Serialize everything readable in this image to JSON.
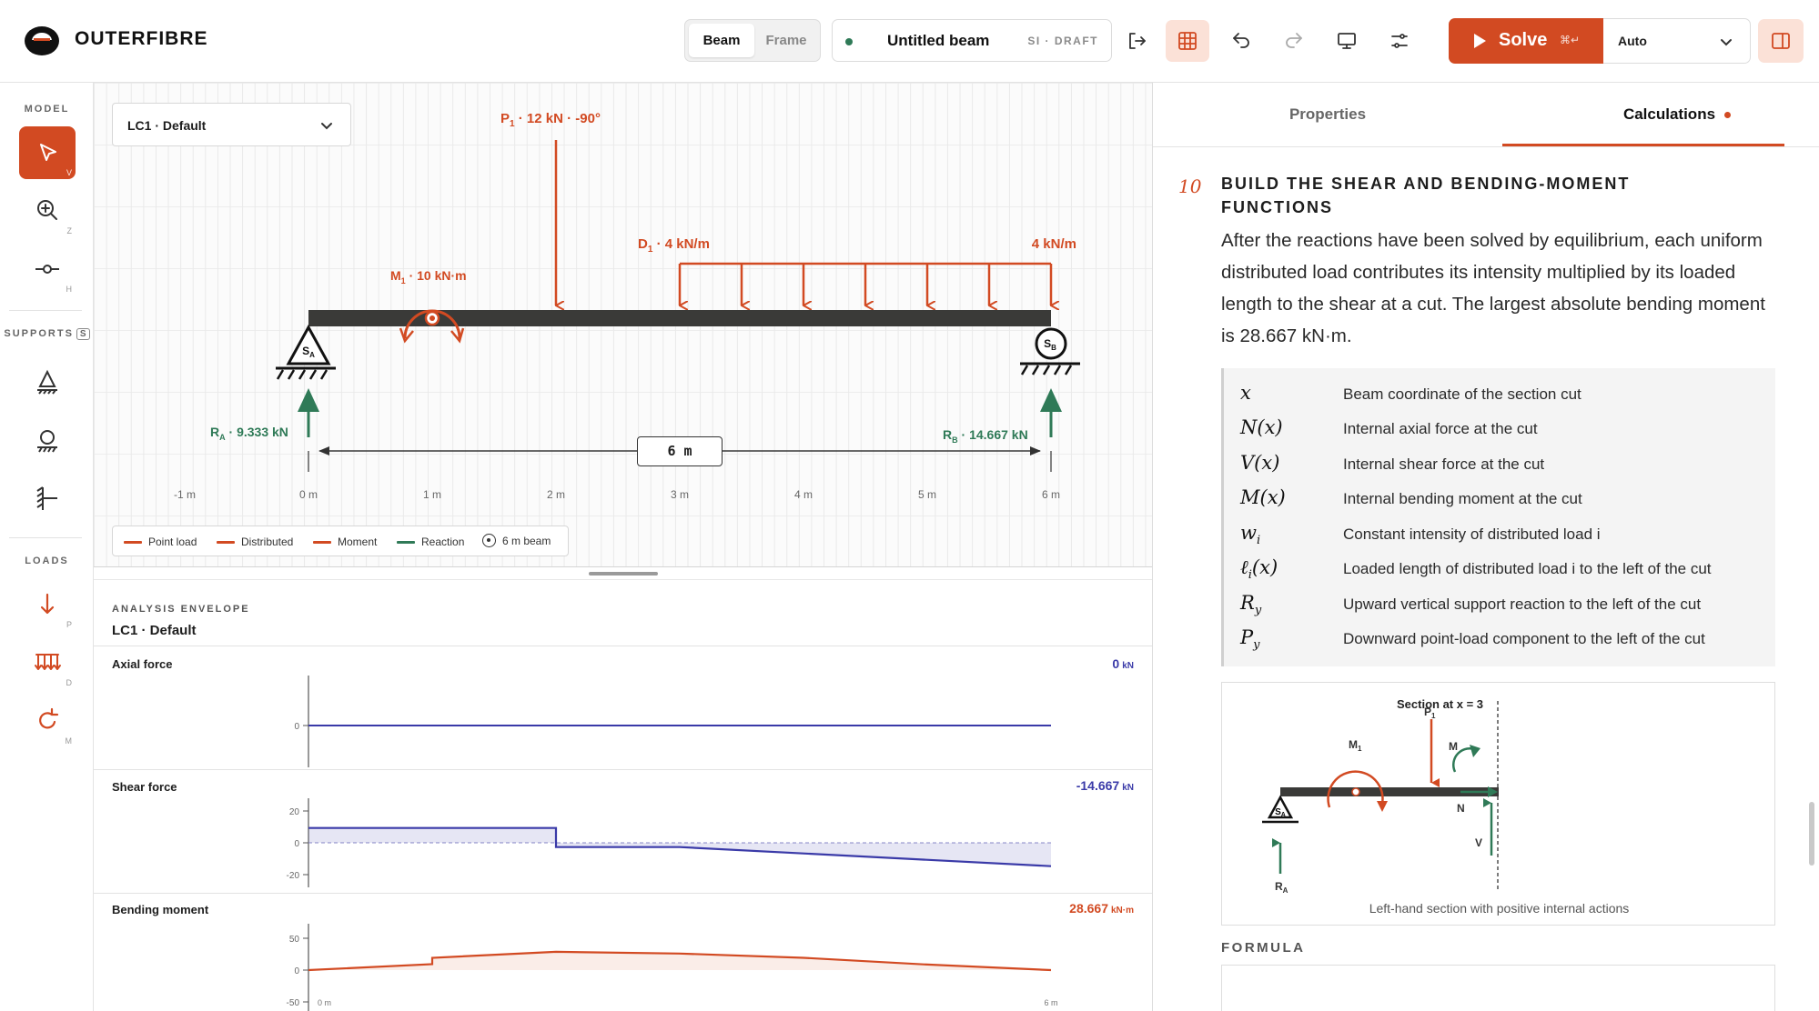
{
  "app": {
    "brand": "OUTERFIBRE"
  },
  "toolbar": {
    "mode_beam": "Beam",
    "mode_frame": "Frame",
    "doc_title": "Untitled beam",
    "doc_tag": "SI · DRAFT",
    "solve_label": "Solve",
    "solve_shortcut": "⌘↵",
    "auto_label": "Auto",
    "icons": [
      "export-icon",
      "grid-icon",
      "undo-icon",
      "redo-icon",
      "monitor-icon",
      "settings-sliders-icon",
      "panel-icon"
    ]
  },
  "rail": {
    "model_head": "MODEL",
    "supports_head": "SUPPORTS",
    "supports_key": "S",
    "loads_head": "LOADS",
    "tools": [
      {
        "name": "select",
        "key": "V"
      },
      {
        "name": "zoom",
        "key": "Z"
      },
      {
        "name": "hinge",
        "key": "H"
      },
      {
        "name": "pin-support",
        "key": ""
      },
      {
        "name": "roller-support",
        "key": ""
      },
      {
        "name": "fixed-support",
        "key": ""
      },
      {
        "name": "point-load",
        "key": "P"
      },
      {
        "name": "distributed-load",
        "key": "D"
      },
      {
        "name": "moment",
        "key": "M"
      }
    ]
  },
  "canvas": {
    "load_case": "LC1 · Default",
    "span_label": "6 m",
    "axis_ticks": [
      "-1 m",
      "0 m",
      "1 m",
      "2 m",
      "3 m",
      "4 m",
      "5 m",
      "6 m"
    ],
    "point_load": {
      "name": "P",
      "sub": "1",
      "text": " · 12 kN · -90°"
    },
    "moment": {
      "name": "M",
      "sub": "1",
      "text": " · 10 kN·m"
    },
    "dist_load": {
      "name": "D",
      "sub": "1",
      "text": " · 4 kN/m",
      "end_text": "4 kN/m"
    },
    "reaction_a": {
      "name": "R",
      "sub": "A",
      "text": " · 9.333 kN"
    },
    "reaction_b": {
      "name": "R",
      "sub": "B",
      "text": " · 14.667 kN"
    },
    "support_a": {
      "name": "S",
      "sub": "A"
    },
    "support_b": {
      "name": "S",
      "sub": "B"
    },
    "colors": {
      "load": "#d24a22",
      "reaction": "#2f7a57",
      "beam": "#3a3a38"
    },
    "legend": [
      "Point load",
      "Distributed",
      "Moment",
      "Reaction",
      "6 m beam"
    ]
  },
  "envelope": {
    "head": "ANALYSIS ENVELOPE",
    "load_case": "LC1 · Default",
    "axial": {
      "title": "Axial force",
      "value": "0",
      "unit": "kN",
      "ticks": [
        "0"
      ],
      "color": "#3a3aa8"
    },
    "shear": {
      "title": "Shear force",
      "value": "-14.667",
      "unit": "kN",
      "ticks": [
        "20",
        "0",
        "-20"
      ],
      "color": "#3a3aa8"
    },
    "moment": {
      "title": "Bending moment",
      "value": "28.667",
      "unit": "kN·m",
      "ticks": [
        "50",
        "0",
        "-50"
      ],
      "x_start": "0 m",
      "x_end": "6 m",
      "color": "#d24a22"
    }
  },
  "chart_data": [
    {
      "type": "line",
      "title": "Axial force",
      "x": [
        0,
        6
      ],
      "y": [
        0,
        0
      ],
      "xlim": [
        0,
        6
      ]
    },
    {
      "type": "line",
      "title": "Shear force",
      "x": [
        0,
        2,
        2,
        3,
        6
      ],
      "y": [
        9.333,
        9.333,
        -2.667,
        -2.667,
        -14.667
      ],
      "ylim": [
        -20,
        20
      ],
      "xlim": [
        0,
        6
      ]
    },
    {
      "type": "line",
      "title": "Bending moment",
      "x": [
        0,
        1,
        1,
        2,
        3,
        4,
        5,
        6
      ],
      "y": [
        0,
        9.333,
        19.333,
        28.667,
        26,
        19.333,
        8.667,
        0
      ],
      "ylim": [
        -50,
        50
      ],
      "xlim": [
        0,
        6
      ]
    }
  ],
  "panel": {
    "tab_properties": "Properties",
    "tab_calculations": "Calculations",
    "step_number": "10",
    "step_title": "BUILD THE SHEAR AND BENDING-MOMENT FUNCTIONS",
    "step_body": "After the reactions have been solved by equilibrium, each uniform distributed load contributes its intensity multiplied by its loaded length to the shear at a cut. The largest absolute bending moment is 28.667 kN·m.",
    "symbols": [
      {
        "sym": "x",
        "sub": "",
        "desc": "Beam coordinate of the section cut"
      },
      {
        "sym": "N(x)",
        "sub": "",
        "desc": "Internal axial force at the cut"
      },
      {
        "sym": "V(x)",
        "sub": "",
        "desc": "Internal shear force at the cut"
      },
      {
        "sym": "M(x)",
        "sub": "",
        "desc": "Internal bending moment at the cut"
      },
      {
        "sym": "w",
        "sub": "i",
        "desc": "Constant intensity of distributed load i"
      },
      {
        "sym": "ℓ",
        "sub": "i",
        "suffix": "(x)",
        "desc": "Loaded length of distributed load i to the left of the cut"
      },
      {
        "sym": "R",
        "sub": "y",
        "desc": "Upward vertical support reaction to the left of the cut"
      },
      {
        "sym": "P",
        "sub": "y",
        "desc": "Downward point-load component to the left of the cut"
      }
    ],
    "figure": {
      "section_label": "Section at x = 3",
      "p_label": "P",
      "p_sub": "1",
      "m1_label": "M",
      "m1_sub": "1",
      "m_label": "M",
      "n_label": "N",
      "v_label": "V",
      "s_label": "S",
      "s_sub": "A",
      "r_label": "R",
      "r_sub": "A",
      "caption": "Left-hand section with positive internal actions"
    },
    "formula_head": "FORMULA"
  }
}
